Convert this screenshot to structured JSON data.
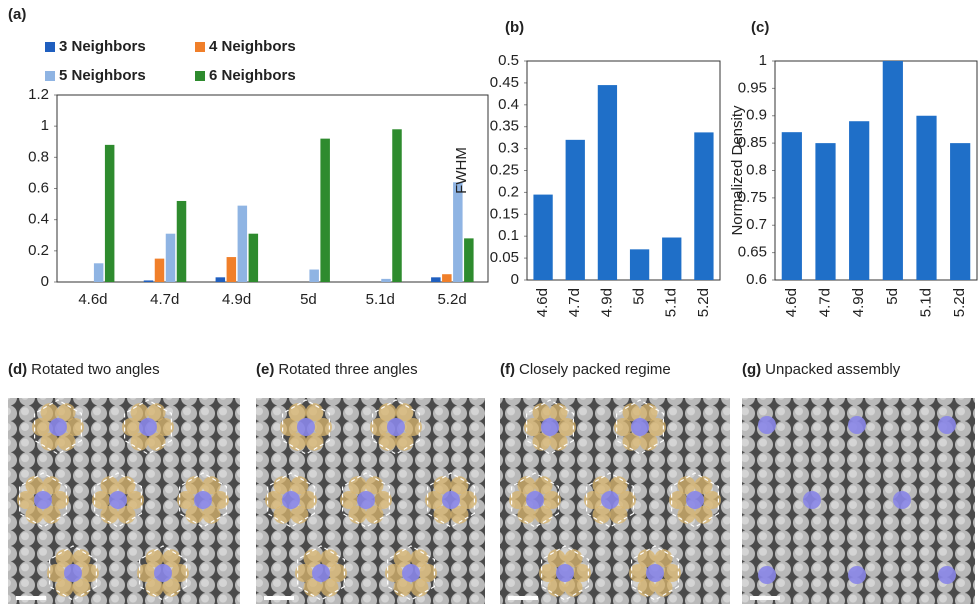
{
  "chart_data": [
    {
      "type": "bar",
      "label": "(a)",
      "categories": [
        "4.6d",
        "4.7d",
        "4.9d",
        "5d",
        "5.1d",
        "5.2d"
      ],
      "series": [
        {
          "name": "3 Neighbors",
          "color": "#1f5fbf",
          "values": [
            0,
            0.01,
            0.03,
            0,
            0,
            0.03
          ]
        },
        {
          "name": "4 Neighbors",
          "color": "#f07f2a",
          "values": [
            0,
            0.15,
            0.16,
            0,
            0,
            0.05
          ]
        },
        {
          "name": "5 Neighbors",
          "color": "#8fb4e3",
          "values": [
            0.12,
            0.31,
            0.49,
            0.08,
            0.02,
            0.64
          ]
        },
        {
          "name": "6 Neighbors",
          "color": "#2e8b2e",
          "values": [
            0.88,
            0.52,
            0.31,
            0.92,
            0.98,
            0.28
          ]
        }
      ],
      "ylim": [
        0,
        1.2
      ],
      "yticks": [
        0,
        0.2,
        0.4,
        0.6,
        0.8,
        1,
        1.2
      ]
    },
    {
      "type": "bar",
      "label": "(b)",
      "ylabel": "FWHM",
      "categories": [
        "4.6d",
        "4.7d",
        "4.9d",
        "5d",
        "5.1d",
        "5.2d"
      ],
      "values": [
        0.195,
        0.32,
        0.445,
        0.07,
        0.097,
        0.337
      ],
      "color": "#1f6fc8",
      "ylim": [
        0,
        0.5
      ],
      "yticks": [
        0,
        0.05,
        0.1,
        0.15,
        0.2,
        0.25,
        0.3,
        0.35,
        0.4,
        0.45,
        0.5
      ]
    },
    {
      "type": "bar",
      "label": "(c)",
      "ylabel": "Normalized Density",
      "categories": [
        "4.6d",
        "4.7d",
        "4.9d",
        "5d",
        "5.1d",
        "5.2d"
      ],
      "values": [
        0.87,
        0.85,
        0.89,
        1,
        0.9,
        0.85
      ],
      "color": "#1f6fc8",
      "ylim": [
        0.6,
        1
      ],
      "yticks": [
        0.6,
        0.65,
        0.7,
        0.75,
        0.8,
        0.85,
        0.9,
        0.95,
        1
      ]
    }
  ],
  "panels": [
    {
      "label": "(d)",
      "caption": "Rotated two angles"
    },
    {
      "label": "(e)",
      "caption": "Rotated three angles"
    },
    {
      "label": "(f)",
      "caption": "Closely packed regime"
    },
    {
      "label": "(g)",
      "caption": "Unpacked assembly"
    }
  ]
}
